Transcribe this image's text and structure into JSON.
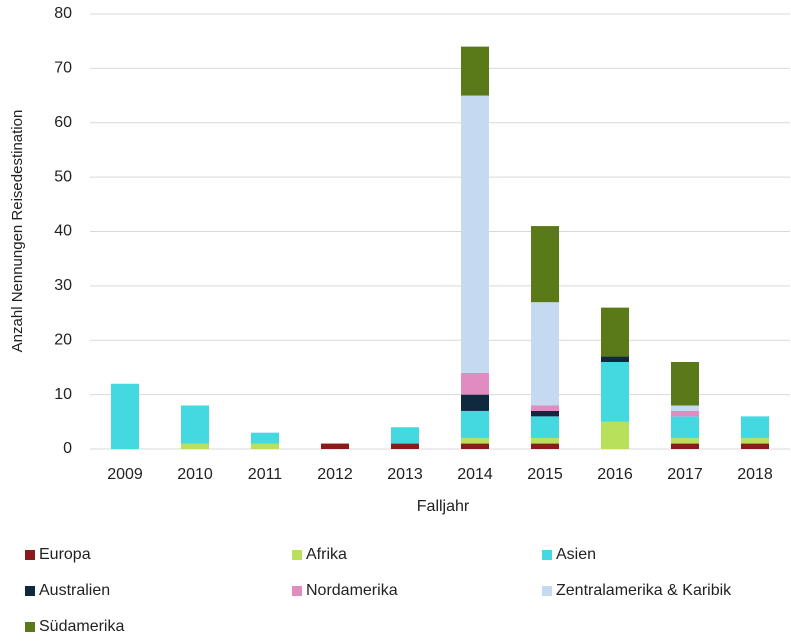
{
  "chart_data": {
    "type": "stacked_bar",
    "x_label": "Falljahr",
    "y_label": "Anzahl Nennungen Reisedestination",
    "categories": [
      "2009",
      "2010",
      "2011",
      "2012",
      "2013",
      "2014",
      "2015",
      "2016",
      "2017",
      "2018"
    ],
    "series": [
      {
        "name": "Europa",
        "color": "#8b1a1a",
        "values": [
          0,
          0,
          0,
          1,
          1,
          1,
          1,
          0,
          1,
          1
        ]
      },
      {
        "name": "Afrika",
        "color": "#b8e05a",
        "values": [
          0,
          1,
          1,
          0,
          0,
          1,
          1,
          5,
          1,
          1
        ]
      },
      {
        "name": "Asien",
        "color": "#44d8e0",
        "values": [
          12,
          7,
          2,
          0,
          3,
          5,
          4,
          11,
          4,
          4
        ]
      },
      {
        "name": "Australien",
        "color": "#0f2a3f",
        "values": [
          0,
          0,
          0,
          0,
          0,
          3,
          1,
          1,
          0,
          0
        ]
      },
      {
        "name": "Nordamerika",
        "color": "#e08cc0",
        "values": [
          0,
          0,
          0,
          0,
          0,
          4,
          1,
          0,
          1,
          0
        ]
      },
      {
        "name": "Zentralamerika & Karibik",
        "color": "#c5d9f0",
        "values": [
          0,
          0,
          0,
          0,
          0,
          51,
          19,
          0,
          1,
          0
        ]
      },
      {
        "name": "Südamerika",
        "color": "#5a7a1a",
        "values": [
          0,
          0,
          0,
          0,
          0,
          9,
          14,
          9,
          8,
          0
        ]
      }
    ],
    "ylim": [
      0,
      80
    ],
    "yticks": [
      0,
      10,
      20,
      30,
      40,
      50,
      60,
      70,
      80
    ],
    "grid": true
  }
}
